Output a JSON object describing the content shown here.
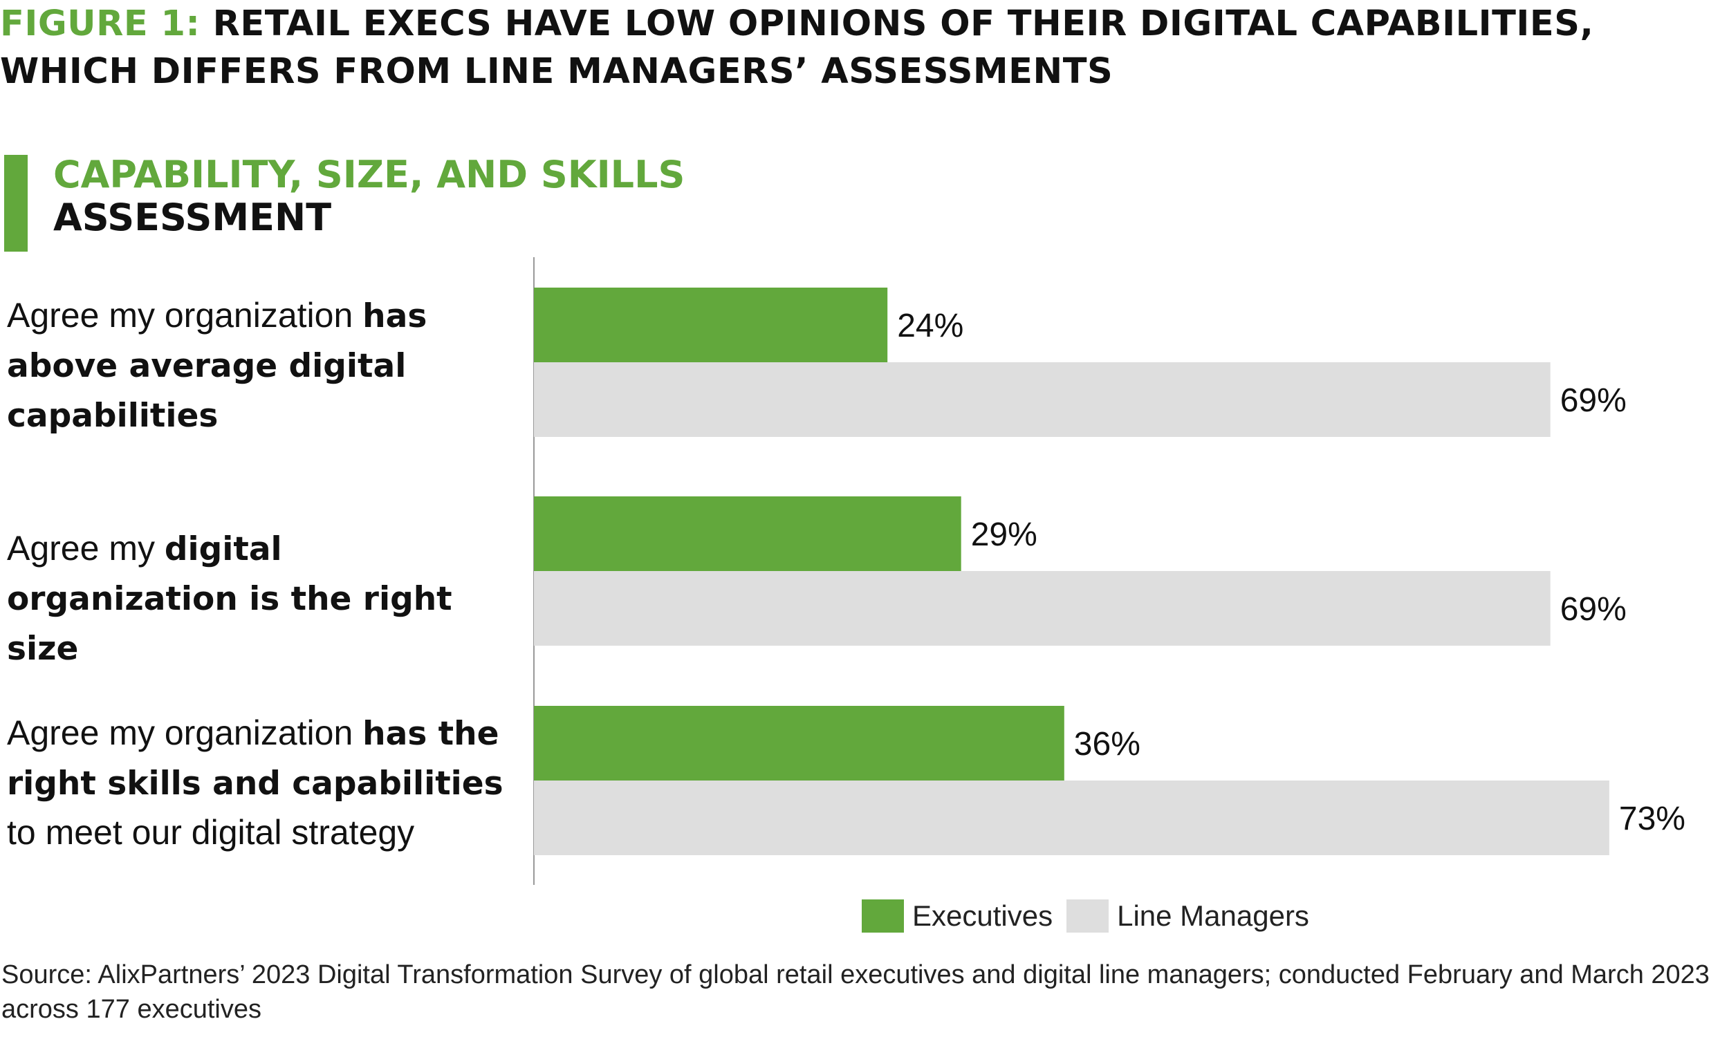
{
  "header": {
    "figure_prefix": "FIGURE 1:",
    "figure_title": " RETAIL EXECS HAVE LOW OPINIONS OF THEIR DIGITAL CAPABILITIES, WHICH DIFFERS FROM LINE MANAGERS’ ASSESSMENTS",
    "section_title_line1": "CAPABILITY, SIZE, AND SKILLS",
    "section_title_line2": "ASSESSMENT"
  },
  "colors": {
    "accent": "#62a83c",
    "executives": "#62a83c",
    "line_managers": "#dedede"
  },
  "category_labels": [
    {
      "pre": "Agree my organization ",
      "bold": "has above average digital capabilities",
      "post": ""
    },
    {
      "pre": "Agree my ",
      "bold": "digital organization is the right size",
      "post": ""
    },
    {
      "pre": "Agree my organization ",
      "bold": "has the right skills and capabilities",
      "post": " to meet our digital strategy"
    }
  ],
  "chart_data": {
    "type": "bar",
    "orientation": "horizontal",
    "categories": [
      "Agree my organization has above average digital capabilities",
      "Agree my digital organization is the right size",
      "Agree my organization has the right skills and capabilities to meet our digital strategy"
    ],
    "series": [
      {
        "name": "Executives",
        "values": [
          24,
          29,
          36
        ],
        "labels": [
          "24%",
          "29%",
          "36%"
        ]
      },
      {
        "name": "Line Managers",
        "values": [
          69,
          69,
          73
        ],
        "labels": [
          "69%",
          "69%",
          "73%"
        ]
      }
    ],
    "xlim": [
      0,
      100
    ],
    "unit": "%",
    "grid": false,
    "legend_position": "bottom"
  },
  "legend": {
    "executives_label": "Executives",
    "line_managers_label": "Line Managers"
  },
  "footer": {
    "source": "Source: AlixPartners’ 2023 Digital Transformation Survey of global retail executives and digital line managers; conducted February and March 2023 across 177 executives"
  }
}
